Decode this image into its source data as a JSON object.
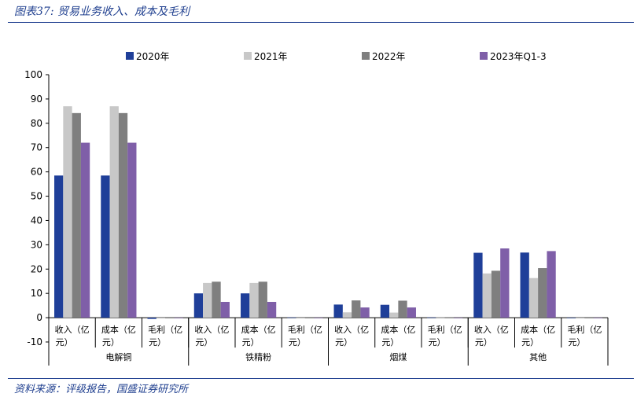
{
  "header": {
    "title": "图表37: 贸易业务收入、成本及毛利"
  },
  "footer": {
    "source": "资料来源：评级报告，国盛证券研究所"
  },
  "chart_data": {
    "type": "bar",
    "ylim": [
      -10,
      100
    ],
    "yticks": [
      -10,
      0,
      10,
      20,
      30,
      40,
      50,
      60,
      70,
      80,
      90,
      100
    ],
    "legend_position": "top",
    "groups": [
      {
        "name": "电解铜",
        "categories": [
          [
            "收入（亿",
            "元）"
          ],
          [
            "成本（亿",
            "元）"
          ],
          [
            "毛利（亿",
            "元）"
          ]
        ]
      },
      {
        "name": "铁精粉",
        "categories": [
          [
            "收入（亿",
            "元）"
          ],
          [
            "成本（亿",
            "元）"
          ],
          [
            "毛利（亿",
            "元）"
          ]
        ]
      },
      {
        "name": "烟煤",
        "categories": [
          [
            "收入（亿",
            "元）"
          ],
          [
            "成本（亿",
            "元）"
          ],
          [
            "毛利（亿",
            "元）"
          ]
        ]
      },
      {
        "name": "其他",
        "categories": [
          [
            "收入（亿",
            "元）"
          ],
          [
            "成本（亿",
            "元）"
          ],
          [
            "毛利（亿",
            "元）"
          ]
        ]
      }
    ],
    "series": [
      {
        "name": "2020年",
        "color": "#1f3f99",
        "values": [
          58.5,
          58.5,
          -0.5,
          10.0,
          10.0,
          0.1,
          5.4,
          5.3,
          0.1,
          26.7,
          26.8,
          -0.1
        ]
      },
      {
        "name": "2021年",
        "color": "#c8c8c8",
        "values": [
          87.0,
          87.0,
          0.0,
          14.3,
          14.3,
          0.0,
          2.2,
          2.1,
          0.1,
          18.2,
          16.3,
          0.0
        ]
      },
      {
        "name": "2022年",
        "color": "#7f7f7f",
        "values": [
          84.2,
          84.2,
          0.0,
          14.8,
          14.8,
          0.0,
          7.1,
          7.0,
          0.1,
          19.3,
          20.4,
          0.0
        ]
      },
      {
        "name": "2023年Q1-3",
        "color": "#7f5fa8",
        "values": [
          72.0,
          72.0,
          0.0,
          6.5,
          6.5,
          0.0,
          4.2,
          4.2,
          0.0,
          28.5,
          27.4,
          0.0
        ]
      }
    ]
  }
}
